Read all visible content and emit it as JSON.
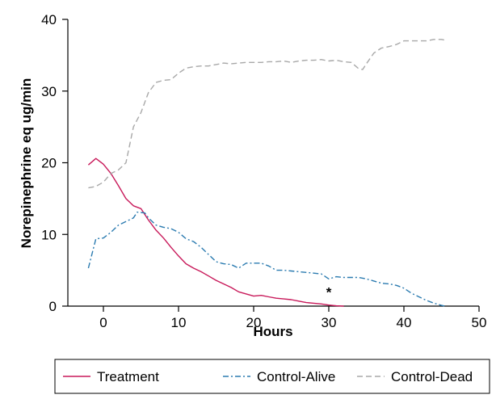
{
  "chart_data": {
    "type": "line",
    "title": "",
    "xlabel": "Hours",
    "ylabel": "Norepinephrine eq ug/min",
    "xlim": [
      -2,
      50
    ],
    "ylim": [
      0,
      40
    ],
    "x_ticks": [
      0,
      10,
      20,
      30,
      40,
      50
    ],
    "y_ticks": [
      0,
      10,
      20,
      30,
      40
    ],
    "x_tick_labels": [
      "0",
      "10",
      "20",
      "30",
      "40",
      "50"
    ],
    "y_tick_labels": [
      "0",
      "10",
      "20",
      "30",
      "40"
    ],
    "grid": false,
    "legend": {
      "position": "bottom",
      "boxed": true
    },
    "annotations": [
      {
        "text": "*",
        "x": 30,
        "y": 2.2
      }
    ],
    "series": [
      {
        "name": "Treatment",
        "color": "#c8195a",
        "dash": "solid",
        "points": [
          [
            -2,
            19.7
          ],
          [
            -1,
            20.6
          ],
          [
            0,
            19.8
          ],
          [
            1,
            18.5
          ],
          [
            2,
            16.8
          ],
          [
            3,
            15.0
          ],
          [
            4,
            14.0
          ],
          [
            5,
            13.6
          ],
          [
            6,
            12.0
          ],
          [
            7,
            10.6
          ],
          [
            8,
            9.5
          ],
          [
            9,
            8.2
          ],
          [
            10,
            7.0
          ],
          [
            11,
            5.9
          ],
          [
            12,
            5.3
          ],
          [
            13,
            4.8
          ],
          [
            14,
            4.2
          ],
          [
            15,
            3.6
          ],
          [
            16,
            3.1
          ],
          [
            17,
            2.6
          ],
          [
            18,
            2.0
          ],
          [
            19,
            1.7
          ],
          [
            20,
            1.4
          ],
          [
            21,
            1.5
          ],
          [
            22,
            1.3
          ],
          [
            23,
            1.1
          ],
          [
            24,
            1.0
          ],
          [
            25,
            0.9
          ],
          [
            26,
            0.7
          ],
          [
            27,
            0.5
          ],
          [
            28,
            0.4
          ],
          [
            29,
            0.3
          ],
          [
            30,
            0.15
          ],
          [
            31,
            0.05
          ],
          [
            32,
            0.0
          ]
        ]
      },
      {
        "name": "Control-Alive",
        "color": "#2b7bb0",
        "dash": "dashdot",
        "points": [
          [
            -2,
            5.3
          ],
          [
            -1,
            9.4
          ],
          [
            0,
            9.5
          ],
          [
            1,
            10.3
          ],
          [
            2,
            11.3
          ],
          [
            3,
            11.8
          ],
          [
            4,
            12.3
          ],
          [
            4.5,
            13.1
          ],
          [
            5.5,
            13.0
          ],
          [
            6,
            12.3
          ],
          [
            7,
            11.3
          ],
          [
            8,
            11.0
          ],
          [
            9,
            10.8
          ],
          [
            10,
            10.3
          ],
          [
            11,
            9.4
          ],
          [
            12,
            9.0
          ],
          [
            13,
            8.2
          ],
          [
            14,
            7.2
          ],
          [
            15,
            6.2
          ],
          [
            16,
            5.9
          ],
          [
            17,
            5.8
          ],
          [
            18,
            5.3
          ],
          [
            19,
            6.0
          ],
          [
            20,
            6.0
          ],
          [
            21,
            6.0
          ],
          [
            22,
            5.6
          ],
          [
            23,
            5.0
          ],
          [
            24,
            5.0
          ],
          [
            25,
            4.9
          ],
          [
            26,
            4.8
          ],
          [
            27,
            4.7
          ],
          [
            28,
            4.6
          ],
          [
            29,
            4.5
          ],
          [
            30,
            3.8
          ],
          [
            31,
            4.1
          ],
          [
            32,
            4.0
          ],
          [
            33,
            4.0
          ],
          [
            34,
            4.0
          ],
          [
            35,
            3.8
          ],
          [
            36,
            3.5
          ],
          [
            37,
            3.2
          ],
          [
            38,
            3.1
          ],
          [
            39,
            2.9
          ],
          [
            40,
            2.5
          ],
          [
            41,
            1.8
          ],
          [
            42,
            1.3
          ],
          [
            43,
            0.8
          ],
          [
            44,
            0.4
          ],
          [
            45,
            0.1
          ],
          [
            45.5,
            0.0
          ]
        ]
      },
      {
        "name": "Control-Dead",
        "color": "#a8a8a8",
        "dash": "dashed",
        "points": [
          [
            -2,
            16.5
          ],
          [
            -1,
            16.7
          ],
          [
            0,
            17.3
          ],
          [
            1,
            18.5
          ],
          [
            2,
            19.0
          ],
          [
            3,
            20.0
          ],
          [
            4,
            25.0
          ],
          [
            5,
            27.0
          ],
          [
            6,
            29.8
          ],
          [
            7,
            31.2
          ],
          [
            8,
            31.5
          ],
          [
            9,
            31.6
          ],
          [
            10,
            32.5
          ],
          [
            11,
            33.2
          ],
          [
            12,
            33.4
          ],
          [
            13,
            33.5
          ],
          [
            14,
            33.5
          ],
          [
            15,
            33.7
          ],
          [
            16,
            33.9
          ],
          [
            17,
            33.8
          ],
          [
            18,
            33.9
          ],
          [
            19,
            34.0
          ],
          [
            20,
            34.0
          ],
          [
            21,
            34.0
          ],
          [
            22,
            34.1
          ],
          [
            23,
            34.1
          ],
          [
            24,
            34.2
          ],
          [
            25,
            34.0
          ],
          [
            26,
            34.2
          ],
          [
            27,
            34.3
          ],
          [
            28,
            34.3
          ],
          [
            29,
            34.4
          ],
          [
            30,
            34.2
          ],
          [
            31,
            34.3
          ],
          [
            32,
            34.1
          ],
          [
            33,
            34.0
          ],
          [
            34,
            33.1
          ],
          [
            34.5,
            33.0
          ],
          [
            35,
            33.8
          ],
          [
            36,
            35.3
          ],
          [
            37,
            36.0
          ],
          [
            38,
            36.2
          ],
          [
            39,
            36.5
          ],
          [
            40,
            37.0
          ],
          [
            41,
            37.0
          ],
          [
            42,
            37.0
          ],
          [
            43,
            37.0
          ],
          [
            44,
            37.2
          ],
          [
            45,
            37.2
          ],
          [
            45.5,
            37.1
          ]
        ]
      }
    ]
  }
}
